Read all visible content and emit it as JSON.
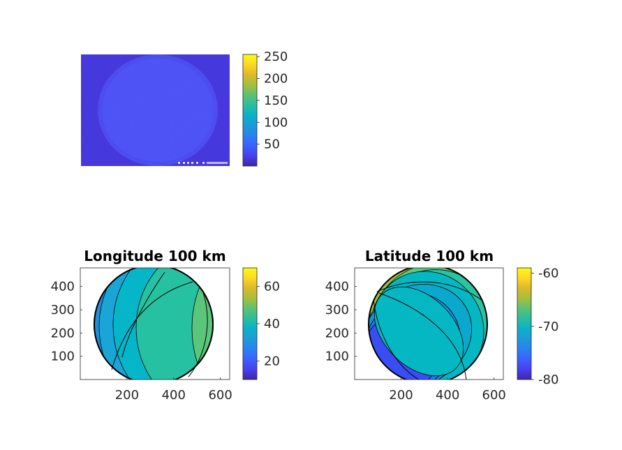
{
  "chart_data": [
    {
      "type": "heatmap",
      "name": "raw-image",
      "title": "",
      "image_content": "camera frame showing a faint round sky disc on a dark-blue background, with small white overlay text at bottom right",
      "axes_visible": false,
      "colorbar": {
        "ticks": [
          50,
          100,
          150,
          200,
          250
        ],
        "tick_labels": [
          "50",
          "100",
          "150",
          "200",
          "250"
        ],
        "range": [
          0,
          255
        ]
      },
      "background_level": 35,
      "disc_level": 55
    },
    {
      "type": "heatmap",
      "name": "longitude",
      "title": "Longitude 100 km",
      "xlim": [
        0,
        640
      ],
      "ylim": [
        0,
        480
      ],
      "xticks": [
        200,
        400,
        600
      ],
      "xtick_labels": [
        "200",
        "400",
        "600"
      ],
      "yticks": [
        100,
        200,
        300,
        400
      ],
      "ytick_labels": [
        "100",
        "200",
        "300",
        "400"
      ],
      "colorbar": {
        "ticks": [
          20,
          40,
          60
        ],
        "tick_labels": [
          "20",
          "40",
          "60"
        ],
        "range": [
          10,
          70
        ]
      },
      "bands": [
        {
          "level": 14,
          "color": "#3449f0"
        },
        {
          "level": 18,
          "color": "#2a6ff0"
        },
        {
          "level": 24,
          "color": "#1f8fdc"
        },
        {
          "level": 30,
          "color": "#19a6d6"
        },
        {
          "level": 36,
          "color": "#05b6c8"
        },
        {
          "level": 42,
          "color": "#25c1a0"
        },
        {
          "level": 48,
          "color": "#5ac67b"
        },
        {
          "level": 54,
          "color": "#9cc442"
        }
      ]
    },
    {
      "type": "heatmap",
      "name": "latitude",
      "title": "Latitude 100 km",
      "xlim": [
        0,
        640
      ],
      "ylim": [
        0,
        480
      ],
      "xticks": [
        200,
        400,
        600
      ],
      "xtick_labels": [
        "200",
        "400",
        "600"
      ],
      "yticks": [
        100,
        200,
        300,
        400
      ],
      "ytick_labels": [
        "100",
        "200",
        "300",
        "400"
      ],
      "colorbar": {
        "ticks": [
          -60,
          -70,
          -80
        ],
        "tick_labels": [
          "-60",
          "-70",
          "-80"
        ],
        "range": [
          -80,
          -59
        ]
      },
      "bands": [
        {
          "level": -78,
          "color": "#3a4df5"
        },
        {
          "level": -76,
          "color": "#2476e8"
        },
        {
          "level": -74,
          "color": "#1992d8"
        },
        {
          "level": -72,
          "color": "#0aa8cc"
        },
        {
          "level": -70,
          "color": "#05b7c2"
        },
        {
          "level": -68,
          "color": "#2cc3a0"
        },
        {
          "level": -66,
          "color": "#5ec679"
        },
        {
          "level": -64,
          "color": "#a2c33c"
        }
      ]
    }
  ],
  "colormap": [
    "#3e26a8",
    "#4740f0",
    "#3d60ff",
    "#2982f1",
    "#1e9ad9",
    "#0ab1ca",
    "#2bbd9f",
    "#5cc172",
    "#a6bf3c",
    "#dcb928",
    "#fdd726",
    "#f9fb14"
  ]
}
